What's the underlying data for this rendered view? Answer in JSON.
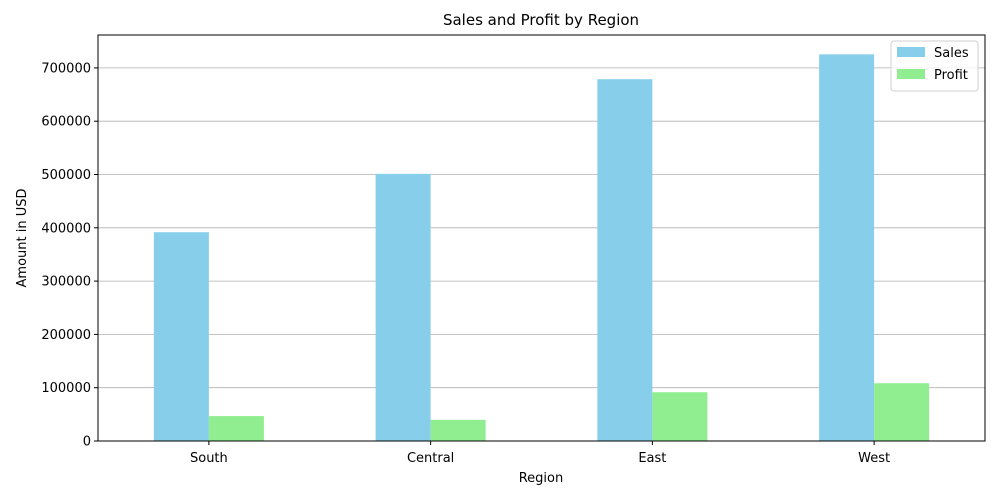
{
  "chart_data": {
    "type": "bar",
    "title": "Sales and Profit by Region",
    "xlabel": "Region",
    "ylabel": "Amount in USD",
    "categories": [
      "South",
      "Central",
      "East",
      "West"
    ],
    "series": [
      {
        "name": "Sales",
        "values": [
          391722,
          501240,
          678781,
          725458
        ],
        "color": "#87ceeb"
      },
      {
        "name": "Profit",
        "values": [
          46749,
          39706,
          91523,
          108418
        ],
        "color": "#90ee90"
      }
    ],
    "ylim": [
      0,
      761731
    ],
    "yticks": [
      0,
      100000,
      200000,
      300000,
      400000,
      500000,
      600000,
      700000
    ],
    "ytick_labels": [
      "0",
      "100000",
      "200000",
      "300000",
      "400000",
      "500000",
      "600000",
      "700000"
    ],
    "grid": "horizontal",
    "legend_position": "top-right"
  }
}
